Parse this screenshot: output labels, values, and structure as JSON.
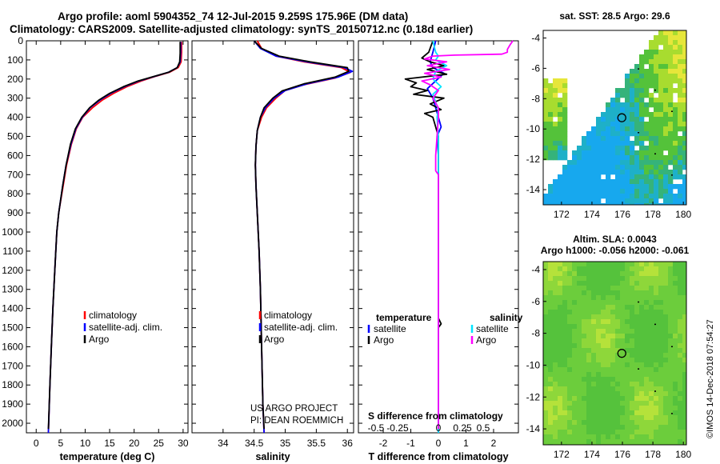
{
  "header": {
    "line1": "Argo profile: aoml 5904352_74 12-Jul-2015 9.259S 175.96E (DM data)",
    "line2": "Climatology: CARS2009. Satellite-adjusted climatology: synTS_20150712.nc (0.18d earlier)"
  },
  "colors": {
    "climatology": "#ff0000",
    "satellite": "#0000ff",
    "argo": "#000000",
    "t_satellite": "#0000ff",
    "s_satellite": "#00e5ff",
    "s_argo": "#ff00ff"
  },
  "depth_axis": {
    "ylim": [
      0,
      2050
    ],
    "ticks": [
      0,
      100,
      200,
      300,
      400,
      500,
      600,
      700,
      800,
      900,
      1000,
      1100,
      1200,
      1300,
      1400,
      1500,
      1600,
      1700,
      1800,
      1900,
      2000
    ],
    "tick_labels": [
      "0",
      "100",
      "200",
      "300",
      "400",
      "500",
      "600",
      "700",
      "800",
      "900",
      "1000",
      "1100",
      "1200",
      "1300",
      "1400",
      "1500",
      "1600",
      "1700",
      "1800",
      "1900",
      "2000"
    ]
  },
  "chart_data": [
    {
      "type": "line",
      "id": "temperature",
      "xlabel": "temperature (deg C)",
      "xlim": [
        -2,
        31
      ],
      "xticks": [
        0,
        5,
        10,
        15,
        20,
        25,
        30
      ],
      "xtick_labels": [
        "0",
        "5",
        "10",
        "15",
        "20",
        "25",
        "30"
      ],
      "legend": [
        "climatology",
        "satellite-adj. clim.",
        "Argo"
      ],
      "series": [
        {
          "name": "climatology",
          "color": "#ff0000",
          "points": [
            [
              29.7,
              5
            ],
            [
              29.7,
              60
            ],
            [
              29.6,
              110
            ],
            [
              29.0,
              140
            ],
            [
              27.2,
              165
            ],
            [
              24.5,
              185
            ],
            [
              21.5,
              210
            ],
            [
              18.5,
              240
            ],
            [
              15.8,
              275
            ],
            [
              13.5,
              310
            ],
            [
              11.5,
              350
            ],
            [
              9.5,
              400
            ],
            [
              8.2,
              460
            ],
            [
              7.2,
              540
            ],
            [
              6.2,
              650
            ],
            [
              5.5,
              760
            ],
            [
              4.6,
              900
            ],
            [
              4.2,
              1000
            ],
            [
              3.8,
              1200
            ],
            [
              3.4,
              1400
            ],
            [
              3.1,
              1600
            ],
            [
              2.8,
              1800
            ],
            [
              2.5,
              2050
            ]
          ]
        },
        {
          "name": "satellite-adj. clim.",
          "color": "#0000ff",
          "points": [
            [
              29.5,
              5
            ],
            [
              29.5,
              60
            ],
            [
              29.4,
              110
            ],
            [
              28.8,
              140
            ],
            [
              27.0,
              165
            ],
            [
              24.3,
              185
            ],
            [
              21.0,
              210
            ],
            [
              18.0,
              240
            ],
            [
              15.2,
              275
            ],
            [
              13.0,
              310
            ],
            [
              11.0,
              350
            ],
            [
              9.4,
              400
            ],
            [
              8.1,
              460
            ],
            [
              7.1,
              540
            ],
            [
              6.1,
              650
            ],
            [
              5.4,
              760
            ],
            [
              4.6,
              900
            ],
            [
              4.2,
              1000
            ],
            [
              3.8,
              1200
            ],
            [
              3.4,
              1400
            ],
            [
              3.1,
              1600
            ],
            [
              2.8,
              1800
            ],
            [
              2.5,
              2050
            ]
          ]
        },
        {
          "name": "Argo",
          "color": "#000000",
          "points": [
            [
              29.4,
              5
            ],
            [
              29.4,
              65
            ],
            [
              29.3,
              110
            ],
            [
              28.8,
              140
            ],
            [
              27.0,
              165
            ],
            [
              24.2,
              185
            ],
            [
              20.8,
              210
            ],
            [
              17.8,
              240
            ],
            [
              15.0,
              275
            ],
            [
              12.8,
              310
            ],
            [
              10.9,
              350
            ],
            [
              9.3,
              400
            ],
            [
              8.0,
              460
            ],
            [
              7.0,
              540
            ],
            [
              6.1,
              650
            ],
            [
              5.4,
              760
            ],
            [
              4.6,
              900
            ],
            [
              4.2,
              1000
            ],
            [
              3.8,
              1200
            ],
            [
              3.4,
              1400
            ],
            [
              3.1,
              1600
            ],
            [
              2.8,
              1800
            ],
            [
              2.5,
              2030
            ]
          ]
        }
      ]
    },
    {
      "type": "line",
      "id": "salinity",
      "xlabel": "salinity",
      "xlim": [
        33.5,
        36.1
      ],
      "xticks": [
        34,
        34.5,
        35,
        35.5,
        36
      ],
      "xtick_labels": [
        "34",
        "34.5",
        "35",
        "35.5",
        "36"
      ],
      "legend": [
        "climatology",
        "satellite-adj. clim.",
        "Argo"
      ],
      "annotation": [
        "US ARGO PROJECT",
        "PI: DEAN ROEMMICH"
      ],
      "series": [
        {
          "name": "climatology",
          "color": "#ff0000",
          "points": [
            [
              34.55,
              0
            ],
            [
              34.62,
              40
            ],
            [
              34.85,
              80
            ],
            [
              35.3,
              110
            ],
            [
              35.9,
              140
            ],
            [
              36.05,
              165
            ],
            [
              35.8,
              195
            ],
            [
              35.3,
              230
            ],
            [
              35.0,
              260
            ],
            [
              34.85,
              300
            ],
            [
              34.7,
              350
            ],
            [
              34.62,
              400
            ],
            [
              34.55,
              470
            ],
            [
              34.53,
              550
            ],
            [
              34.52,
              650
            ],
            [
              34.53,
              760
            ],
            [
              34.55,
              900
            ],
            [
              34.58,
              1100
            ],
            [
              34.6,
              1300
            ],
            [
              34.62,
              1600
            ],
            [
              34.64,
              1900
            ],
            [
              34.66,
              2050
            ]
          ]
        },
        {
          "name": "satellite-adj. clim.",
          "color": "#0000ff",
          "points": [
            [
              34.5,
              0
            ],
            [
              34.6,
              40
            ],
            [
              34.85,
              80
            ],
            [
              35.35,
              110
            ],
            [
              35.95,
              140
            ],
            [
              36.08,
              160
            ],
            [
              35.85,
              190
            ],
            [
              35.35,
              225
            ],
            [
              35.0,
              260
            ],
            [
              34.82,
              300
            ],
            [
              34.68,
              350
            ],
            [
              34.6,
              400
            ],
            [
              34.55,
              470
            ],
            [
              34.53,
              550
            ],
            [
              34.52,
              650
            ],
            [
              34.53,
              760
            ],
            [
              34.55,
              900
            ],
            [
              34.58,
              1100
            ],
            [
              34.6,
              1300
            ],
            [
              34.62,
              1600
            ],
            [
              34.64,
              1900
            ],
            [
              34.66,
              2050
            ]
          ]
        },
        {
          "name": "Argo",
          "color": "#000000",
          "points": [
            [
              34.5,
              0
            ],
            [
              34.62,
              40
            ],
            [
              34.9,
              80
            ],
            [
              35.4,
              110
            ],
            [
              36.0,
              140
            ],
            [
              36.02,
              160
            ],
            [
              35.8,
              190
            ],
            [
              35.3,
              225
            ],
            [
              34.95,
              262
            ],
            [
              34.8,
              300
            ],
            [
              34.66,
              350
            ],
            [
              34.6,
              400
            ],
            [
              34.55,
              470
            ],
            [
              34.53,
              550
            ],
            [
              34.52,
              650
            ],
            [
              34.53,
              760
            ],
            [
              34.55,
              900
            ],
            [
              34.58,
              1100
            ],
            [
              34.6,
              1300
            ],
            [
              34.62,
              1600
            ],
            [
              34.64,
              1900
            ],
            [
              34.66,
              2030
            ]
          ]
        }
      ]
    },
    {
      "type": "line",
      "id": "difference",
      "xlabel": "T difference from climatology",
      "xlim": [
        -2.9,
        2.9
      ],
      "xticks": [
        -2,
        -1,
        0,
        1,
        2
      ],
      "xtick_labels": [
        "-2",
        "-1",
        "0",
        "1",
        "2"
      ],
      "s_axis_title": "S difference from climatology",
      "s_xtick_labels": [
        "-0.5",
        "-0.25",
        "0",
        "0.25",
        "0.5"
      ],
      "legend_temperature_title": "temperature",
      "legend_salinity_title": "salinity",
      "legend_temperature": [
        "satellite",
        "Argo"
      ],
      "legend_salinity": [
        "satellite",
        "Argo"
      ],
      "series": [
        {
          "name": "T satellite",
          "color": "#0000ff",
          "points": [
            [
              -0.1,
              0
            ],
            [
              -0.2,
              60
            ],
            [
              -0.3,
              110
            ],
            [
              -0.2,
              140
            ],
            [
              0.2,
              170
            ],
            [
              -0.1,
              210
            ],
            [
              -0.4,
              250
            ],
            [
              -0.2,
              300
            ],
            [
              -0.1,
              350
            ],
            [
              0.0,
              400
            ],
            [
              0.1,
              450
            ],
            [
              -0.05,
              500
            ],
            [
              0.0,
              600
            ],
            [
              0.0,
              1000
            ],
            [
              0.0,
              2050
            ]
          ]
        },
        {
          "name": "T Argo",
          "color": "#000000",
          "points": [
            [
              -0.2,
              0
            ],
            [
              -0.35,
              60
            ],
            [
              -0.6,
              90
            ],
            [
              -0.3,
              110
            ],
            [
              0.2,
              130
            ],
            [
              -0.4,
              150
            ],
            [
              0.3,
              175
            ],
            [
              -1.2,
              200
            ],
            [
              -0.8,
              220
            ],
            [
              -1.0,
              240
            ],
            [
              -0.4,
              260
            ],
            [
              -0.9,
              280
            ],
            [
              0.2,
              300
            ],
            [
              -0.3,
              330
            ],
            [
              0.1,
              360
            ],
            [
              -0.5,
              380
            ],
            [
              -0.2,
              400
            ],
            [
              -0.1,
              450
            ],
            [
              0.0,
              500
            ],
            [
              0.0,
              1000
            ],
            [
              0.0,
              1450
            ],
            [
              0.1,
              1480
            ],
            [
              0.0,
              1500
            ],
            [
              0.0,
              2030
            ]
          ]
        },
        {
          "name": "S satellite",
          "color": "#00e5ff",
          "points": [
            [
              -0.2,
              0
            ],
            [
              -0.1,
              60
            ],
            [
              0.0,
              80
            ],
            [
              -0.1,
              100
            ],
            [
              0.3,
              130
            ],
            [
              -0.1,
              160
            ],
            [
              -0.2,
              200
            ],
            [
              0.1,
              240
            ],
            [
              -0.2,
              280
            ],
            [
              -0.1,
              320
            ],
            [
              0.0,
              360
            ],
            [
              -0.05,
              400
            ],
            [
              0.0,
              500
            ],
            [
              0.0,
              1000
            ],
            [
              0.0,
              2050
            ]
          ]
        },
        {
          "name": "S Argo",
          "color": "#ff00ff",
          "points": [
            [
              2.7,
              0
            ],
            [
              2.6,
              20
            ],
            [
              2.5,
              45
            ],
            [
              2.5,
              60
            ],
            [
              2.3,
              70
            ],
            [
              0.6,
              75
            ],
            [
              -0.2,
              80
            ],
            [
              -0.5,
              95
            ],
            [
              0.3,
              110
            ],
            [
              -0.4,
              130
            ],
            [
              0.4,
              150
            ],
            [
              -0.5,
              170
            ],
            [
              0.1,
              190
            ],
            [
              -0.6,
              210
            ],
            [
              -0.3,
              230
            ],
            [
              0.0,
              260
            ],
            [
              -0.2,
              300
            ],
            [
              0.0,
              350
            ],
            [
              0.0,
              400
            ],
            [
              -0.1,
              600
            ],
            [
              -0.1,
              680
            ],
            [
              0.0,
              700
            ],
            [
              0.0,
              1000
            ],
            [
              0.0,
              2030
            ]
          ]
        }
      ]
    },
    {
      "type": "heatmap",
      "id": "sst_map",
      "title": "sat. SST: 28.5 Argo: 29.6",
      "xlim": [
        170.8,
        180.2
      ],
      "ylim": [
        -15,
        -3.5
      ],
      "xticks": [
        172,
        174,
        176,
        178,
        180
      ],
      "xtick_labels": [
        "172",
        "174",
        "176",
        "178",
        "180"
      ],
      "yticks": [
        -4,
        -6,
        -8,
        -10,
        -12,
        -14
      ],
      "ytick_labels": [
        "-4",
        "-6",
        "-8",
        "-10",
        "-12",
        "-14"
      ],
      "argo_position": [
        175.96,
        -9.259
      ]
    },
    {
      "type": "heatmap",
      "id": "sla_map",
      "title": "Altim. SLA: 0.0043",
      "subtitle": "Argo h1000: -0.056 h2000: -0.061",
      "xlim": [
        170.8,
        180.2
      ],
      "ylim": [
        -15,
        -3.5
      ],
      "xticks": [
        172,
        174,
        176,
        178,
        180
      ],
      "xtick_labels": [
        "172",
        "174",
        "176",
        "178",
        "180"
      ],
      "yticks": [
        -4,
        -6,
        -8,
        -10,
        -12,
        -14
      ],
      "ytick_labels": [
        "-4",
        "-6",
        "-8",
        "-10",
        "-12",
        "-14"
      ],
      "argo_position": [
        175.96,
        -9.259
      ]
    }
  ],
  "footer": {
    "stamp": "©IMOS 14-Dec-2018 07:54:27"
  }
}
